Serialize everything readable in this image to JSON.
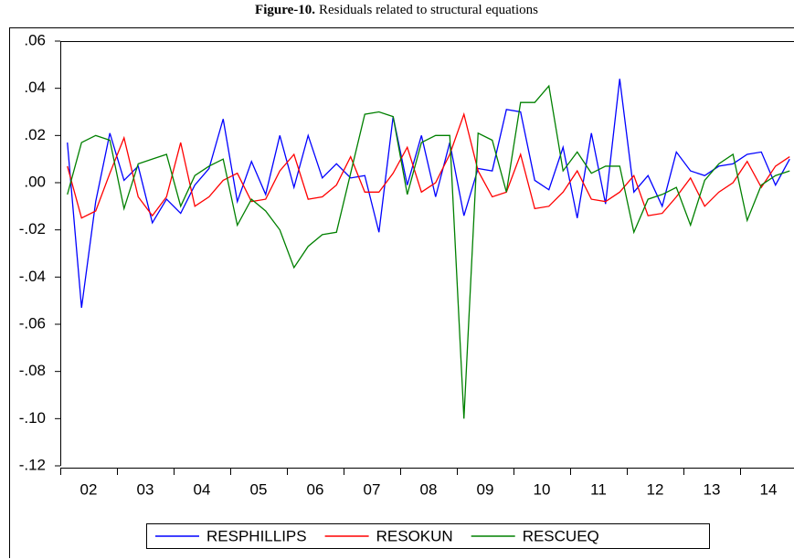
{
  "chart_data": {
    "type": "line",
    "title_label": "Figure-10.",
    "title": "Residuals related to structural equations",
    "categories": [
      null,
      "02",
      null,
      null,
      null,
      "03",
      null,
      null,
      null,
      "04",
      null,
      null,
      null,
      "05",
      null,
      null,
      null,
      "06",
      null,
      null,
      null,
      "07",
      null,
      null,
      null,
      "08",
      null,
      null,
      null,
      "09",
      null,
      null,
      null,
      "10",
      null,
      null,
      null,
      "11",
      null,
      null,
      null,
      "12",
      null,
      null,
      null,
      "13",
      null,
      null,
      null,
      "14",
      null,
      null
    ],
    "series": [
      {
        "name": "RESPHILLIPS",
        "color": "#0000ff",
        "values": [
          0.017,
          -0.053,
          -0.008,
          0.021,
          0.001,
          0.007,
          -0.017,
          -0.007,
          -0.013,
          -0.001,
          0.006,
          0.027,
          -0.008,
          0.009,
          -0.005,
          0.02,
          -0.002,
          0.02,
          0.002,
          0.008,
          0.002,
          0.003,
          -0.021,
          0.028,
          -0.001,
          0.02,
          -0.006,
          0.017,
          -0.014,
          0.006,
          0.005,
          0.031,
          0.03,
          0.001,
          -0.003,
          0.015,
          -0.015,
          0.021,
          -0.009,
          0.044,
          -0.004,
          0.003,
          -0.01,
          0.013,
          0.005,
          0.003,
          0.007,
          0.008,
          0.012,
          0.013,
          -0.001,
          0.01
        ]
      },
      {
        "name": "RESOKUN",
        "color": "#ff0000",
        "values": [
          0.007,
          -0.015,
          -0.012,
          0.004,
          0.019,
          -0.006,
          -0.014,
          -0.006,
          0.017,
          -0.01,
          -0.006,
          0.001,
          0.004,
          -0.008,
          -0.007,
          0.005,
          0.012,
          -0.007,
          -0.006,
          -0.001,
          0.011,
          -0.004,
          -0.004,
          0.004,
          0.015,
          -0.004,
          0.0,
          0.012,
          0.029,
          0.005,
          -0.006,
          -0.004,
          0.012,
          -0.011,
          -0.01,
          -0.004,
          0.005,
          -0.007,
          -0.008,
          -0.004,
          0.003,
          -0.014,
          -0.013,
          -0.006,
          0.002,
          -0.01,
          -0.004,
          0.0,
          0.009,
          -0.002,
          0.007,
          0.011
        ]
      },
      {
        "name": "RESCUEQ",
        "color": "#008000",
        "values": [
          -0.005,
          0.017,
          0.02,
          0.018,
          -0.011,
          0.008,
          0.01,
          0.012,
          -0.01,
          0.003,
          0.007,
          0.01,
          -0.018,
          -0.007,
          -0.012,
          -0.02,
          -0.036,
          -0.027,
          -0.022,
          -0.021,
          0.004,
          0.029,
          0.03,
          0.028,
          -0.005,
          0.017,
          0.02,
          0.02,
          -0.1,
          0.021,
          0.018,
          -0.004,
          0.034,
          0.034,
          0.041,
          0.005,
          0.013,
          0.004,
          0.007,
          0.007,
          -0.021,
          -0.007,
          -0.005,
          -0.002,
          -0.018,
          0.001,
          0.008,
          0.012,
          -0.016,
          -0.001,
          0.003,
          0.005
        ]
      }
    ],
    "ylim": [
      -0.12,
      0.06
    ],
    "yticks": [
      {
        "value": 0.06,
        "label": ".06"
      },
      {
        "value": 0.04,
        "label": ".04"
      },
      {
        "value": 0.02,
        "label": ".02"
      },
      {
        "value": 0,
        "label": ".00"
      },
      {
        "value": -0.02,
        "label": "-.02"
      },
      {
        "value": -0.04,
        "label": "-.04"
      },
      {
        "value": -0.06,
        "label": "-.06"
      },
      {
        "value": -0.08,
        "label": "-.08"
      },
      {
        "value": -0.1,
        "label": "-.10"
      },
      {
        "value": -0.12,
        "label": "-.12"
      }
    ],
    "legend": "bottom"
  }
}
